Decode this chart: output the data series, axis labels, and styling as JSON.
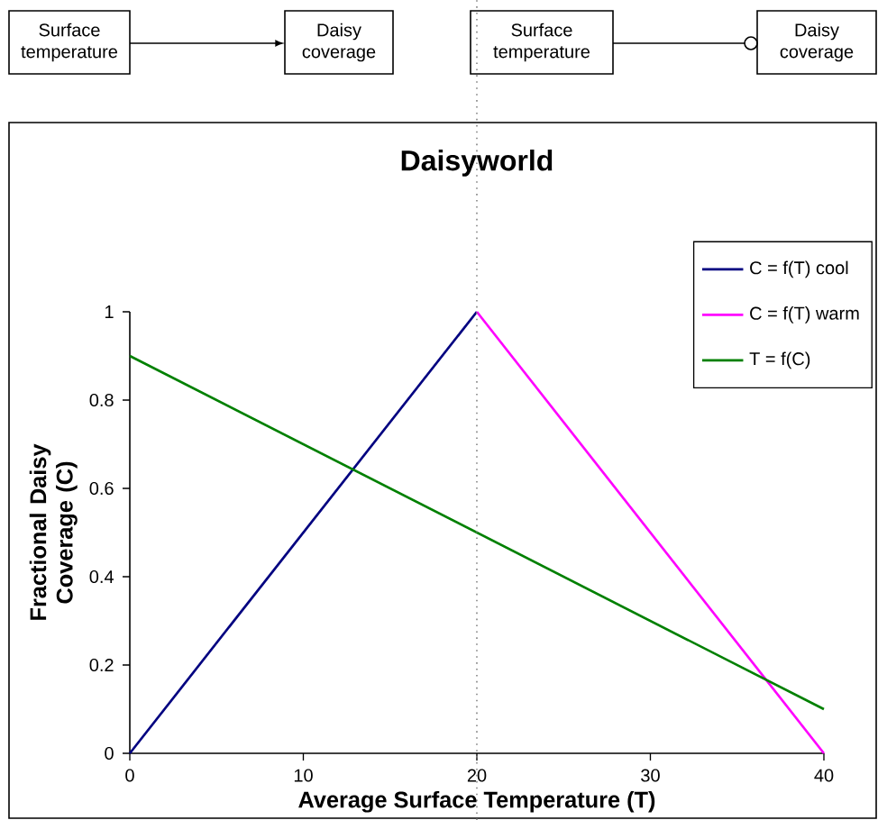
{
  "chart_data": {
    "type": "line",
    "title": "Daisyworld",
    "xlabel": "Average Surface Temperature (T)",
    "ylabel": "Fractional Daisy Coverage (C)",
    "series": [
      {
        "name": "C = f(T)  cool",
        "color": "#000080",
        "x": [
          0,
          20
        ],
        "values": [
          0,
          1
        ]
      },
      {
        "name": "C = f(T)  warm",
        "color": "#ff00ff",
        "x": [
          20,
          40
        ],
        "values": [
          1,
          0
        ]
      },
      {
        "name": "T = f(C)",
        "color": "#008000",
        "x": [
          0,
          40
        ],
        "values": [
          0.9,
          0.1
        ]
      }
    ],
    "xlim": [
      0,
      40
    ],
    "xticks": [
      0,
      10,
      20,
      30,
      40
    ],
    "ylim": [
      0,
      1
    ],
    "yticks": [
      0,
      0.2,
      0.4,
      0.6,
      0.8,
      1
    ],
    "ref_lines": [
      {
        "axis": "x",
        "value": 20,
        "color": "#808080",
        "line_style": "dotted"
      }
    ],
    "annotations": [
      "Surface temperature",
      "Daisy coverage",
      "Surface temperature",
      "Daisy coverage"
    ],
    "legend": "top right",
    "grid": false,
    "marker": "none",
    "line_style": "solid"
  }
}
